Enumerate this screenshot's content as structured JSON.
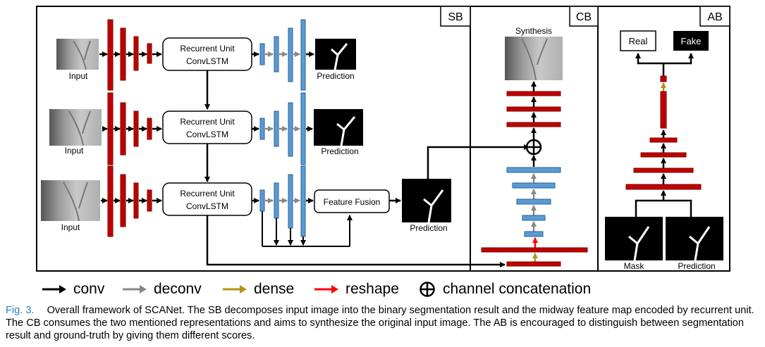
{
  "sections": {
    "sb": "SB",
    "cb": "CB",
    "ab": "AB"
  },
  "sb": {
    "input_label": "Input",
    "prediction_label": "Prediction",
    "recurrent_unit_line1": "Recurrent Unit",
    "recurrent_unit_line2": "ConvLSTM",
    "feature_fusion": "Feature Fusion"
  },
  "cb": {
    "synthesis_label": "Synthesis"
  },
  "ab": {
    "real": "Real",
    "fake": "Fake",
    "mask_label": "Mask",
    "prediction_label": "Prediction"
  },
  "legend": {
    "conv": "conv",
    "deconv": "deconv",
    "dense": "dense",
    "reshape": "reshape",
    "concat": "channel concatenation"
  },
  "colors": {
    "conv": "#000000",
    "deconv": "#888888",
    "dense": "#b8901a",
    "reshape": "#ff0000",
    "conv_block": "#c00000",
    "deconv_block": "#5b9bd5"
  },
  "caption": {
    "fig_no": "Fig. 3.",
    "text": "Overall framework of SCANet. The SB decomposes input image into the binary segmentation result and the midway feature map encoded by recurrent unit. The CB consumes the two mentioned representations and aims to synthesize the original input image. The AB is encouraged to distinguish between segmentation result and ground-truth by giving them different scores."
  }
}
